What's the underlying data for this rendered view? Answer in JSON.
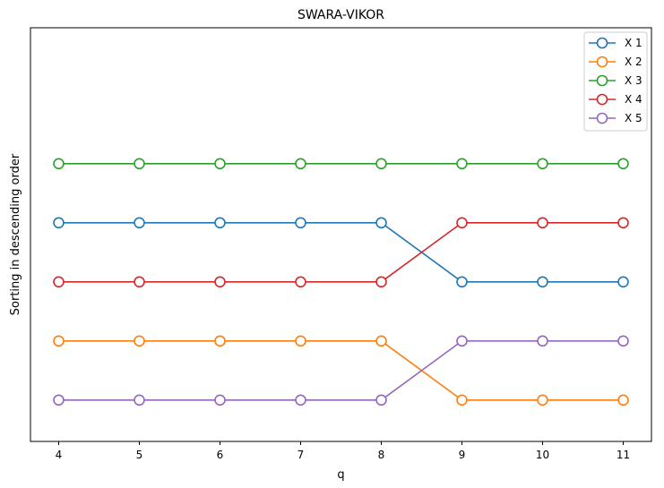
{
  "chart_data": {
    "type": "line",
    "title": "SWARA-VIKOR",
    "xlabel": "q",
    "ylabel": "Sorting in descending order",
    "x": [
      4,
      5,
      6,
      7,
      8,
      9,
      10,
      11
    ],
    "xlim": [
      3.65,
      11.35
    ],
    "ylim": [
      0.3,
      7.3
    ],
    "y_ticks_visible": false,
    "grid": false,
    "legend_position": "top-right",
    "marker": "open-circle",
    "series": [
      {
        "name": "X 1",
        "color": "#1f77b4",
        "values": [
          4,
          4,
          4,
          4,
          4,
          3,
          3,
          3
        ]
      },
      {
        "name": "X 2",
        "color": "#ff7f0e",
        "values": [
          2,
          2,
          2,
          2,
          2,
          1,
          1,
          1
        ]
      },
      {
        "name": "X 3",
        "color": "#2ca02c",
        "values": [
          5,
          5,
          5,
          5,
          5,
          5,
          5,
          5
        ]
      },
      {
        "name": "X 4",
        "color": "#d62728",
        "values": [
          3,
          3,
          3,
          3,
          3,
          4,
          4,
          4
        ]
      },
      {
        "name": "X 5",
        "color": "#9467bd",
        "values": [
          1,
          1,
          1,
          1,
          1,
          2,
          2,
          2
        ]
      }
    ]
  }
}
